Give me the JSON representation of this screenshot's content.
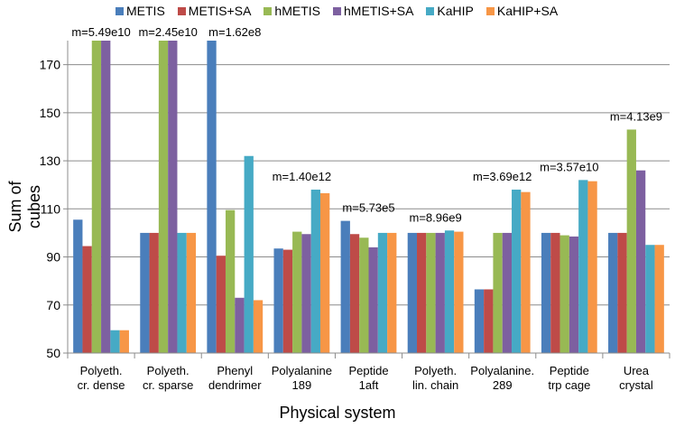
{
  "chart_data": {
    "type": "bar",
    "xlabel": "Physical system",
    "ylabel": "Sum of cubes",
    "ylim": [
      50,
      180
    ],
    "yticks": [
      50,
      70,
      90,
      110,
      130,
      150,
      170
    ],
    "grid": true,
    "legend_position": "top",
    "categories": [
      [
        "Polyeth.",
        "cr. dense"
      ],
      [
        "Polyeth.",
        "cr. sparse"
      ],
      [
        "Phenyl",
        "dendrimer"
      ],
      [
        "Polyalanine",
        "189"
      ],
      [
        "Peptide",
        "1aft"
      ],
      [
        "Polyeth.",
        "lin. chain"
      ],
      [
        "Polyalanine.",
        "289"
      ],
      [
        "Peptide",
        "trp cage"
      ],
      [
        "Urea",
        "crystal"
      ]
    ],
    "annotations": [
      "m=5.49e10",
      "m=2.45e10",
      "m=1.62e8",
      "m=1.40e12",
      "m=5.73e5",
      "m=8.96e9",
      "m=3.69e12",
      "m=3.57e10",
      "m=4.13e9"
    ],
    "series": [
      {
        "name": "METIS",
        "color": "#4a7ebb",
        "values": [
          105.5,
          100,
          180,
          93.5,
          105,
          100,
          76.5,
          100,
          100
        ]
      },
      {
        "name": "METIS+SA",
        "color": "#be4b48",
        "values": [
          94.5,
          100,
          90.5,
          93,
          99.5,
          100,
          76.5,
          100,
          100
        ]
      },
      {
        "name": "hMETIS",
        "color": "#98b954",
        "values": [
          180,
          180,
          109.5,
          100.5,
          98,
          100,
          100,
          99,
          143
        ]
      },
      {
        "name": "hMETIS+SA",
        "color": "#7d60a0",
        "values": [
          180,
          180,
          73,
          99.5,
          94,
          100,
          100,
          98.5,
          126
        ]
      },
      {
        "name": "KaHIP",
        "color": "#46aac5",
        "values": [
          59.5,
          100,
          132,
          118,
          100,
          101,
          118,
          122,
          95
        ]
      },
      {
        "name": "KaHIP+SA",
        "color": "#f79646",
        "values": [
          59.5,
          100,
          72,
          116.5,
          100,
          100.5,
          117,
          121.5,
          95
        ]
      }
    ]
  }
}
